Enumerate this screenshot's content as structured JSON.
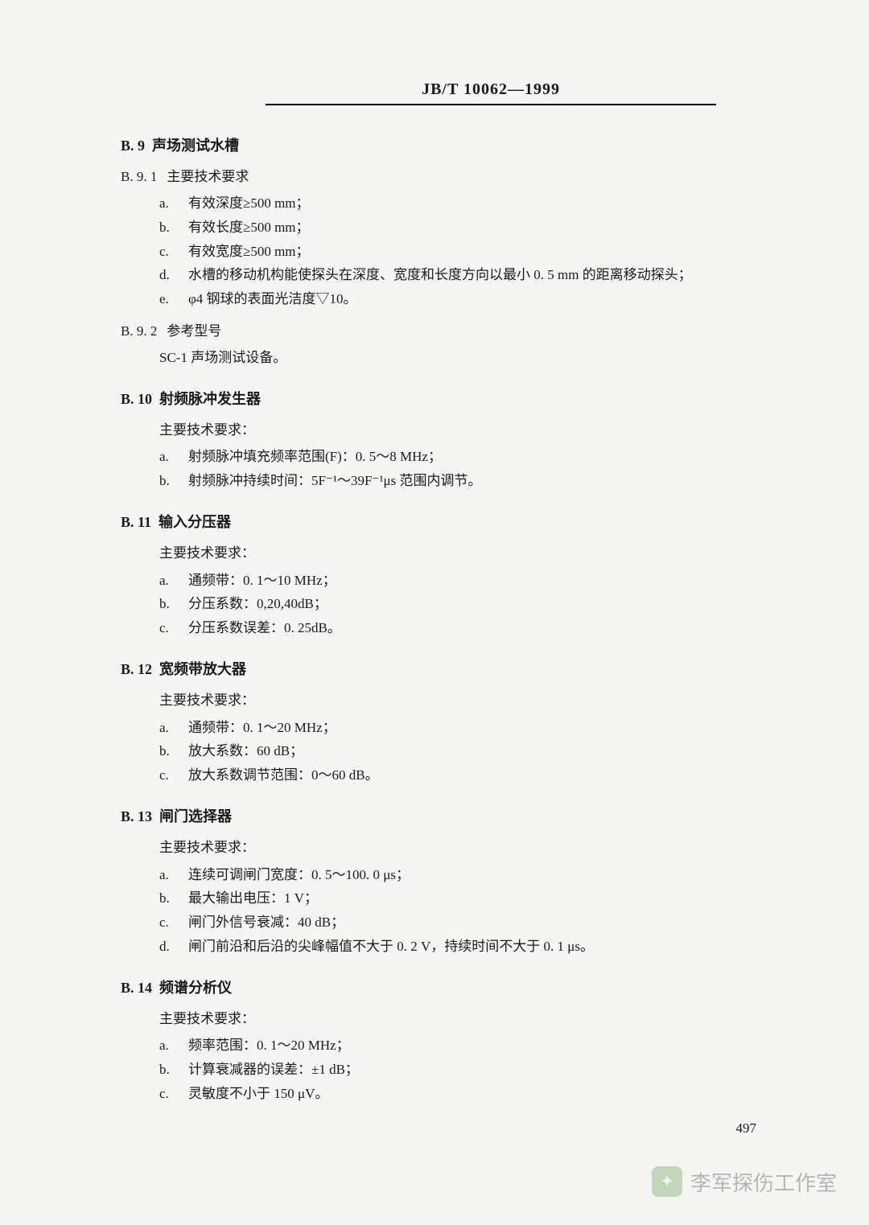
{
  "header": "JB/T 10062—1999",
  "page_number": "497",
  "watermark": "李军探伤工作室",
  "sections": {
    "b9": {
      "num": "B. 9",
      "title": "声场测试水槽",
      "sub1_num": "B. 9. 1",
      "sub1_title": "主要技术要求",
      "items": {
        "a": "有效深度≥500 mm；",
        "b": "有效长度≥500 mm；",
        "c": "有效宽度≥500 mm；",
        "d": "水槽的移动机构能使探头在深度、宽度和长度方向以最小 0. 5 mm 的距离移动探头；",
        "e": "φ4 钢球的表面光洁度▽10。"
      },
      "sub2_num": "B. 9. 2",
      "sub2_title": "参考型号",
      "sub2_text": "SC-1 声场测试设备。"
    },
    "b10": {
      "num": "B. 10",
      "title": "射频脉冲发生器",
      "intro": "主要技术要求：",
      "items": {
        "a": "射频脉冲填充频率范围(F)：0. 5～8 MHz；",
        "b": "射频脉冲持续时间：5F⁻¹～39F⁻¹μs 范围内调节。"
      }
    },
    "b11": {
      "num": "B. 11",
      "title": "输入分压器",
      "intro": "主要技术要求：",
      "items": {
        "a": "通频带：0. 1～10 MHz；",
        "b": "分压系数：0,20,40dB；",
        "c": "分压系数误差：0. 25dB。"
      }
    },
    "b12": {
      "num": "B. 12",
      "title": "宽频带放大器",
      "intro": "主要技术要求：",
      "items": {
        "a": "通频带：0. 1～20 MHz；",
        "b": "放大系数：60 dB；",
        "c": "放大系数调节范围：0～60 dB。"
      }
    },
    "b13": {
      "num": "B. 13",
      "title": "闸门选择器",
      "intro": "主要技术要求：",
      "items": {
        "a": "连续可调闸门宽度：0. 5～100. 0 μs；",
        "b": "最大输出电压：1 V；",
        "c": "闸门外信号衰减：40 dB；",
        "d": "闸门前沿和后沿的尖峰幅值不大于 0. 2 V，持续时间不大于 0. 1 μs。"
      }
    },
    "b14": {
      "num": "B. 14",
      "title": "频谱分析仪",
      "intro": "主要技术要求：",
      "items": {
        "a": "频率范围：0. 1～20 MHz；",
        "b": "计算衰减器的误差：±1 dB；",
        "c": "灵敏度不小于 150 μV。"
      }
    }
  }
}
